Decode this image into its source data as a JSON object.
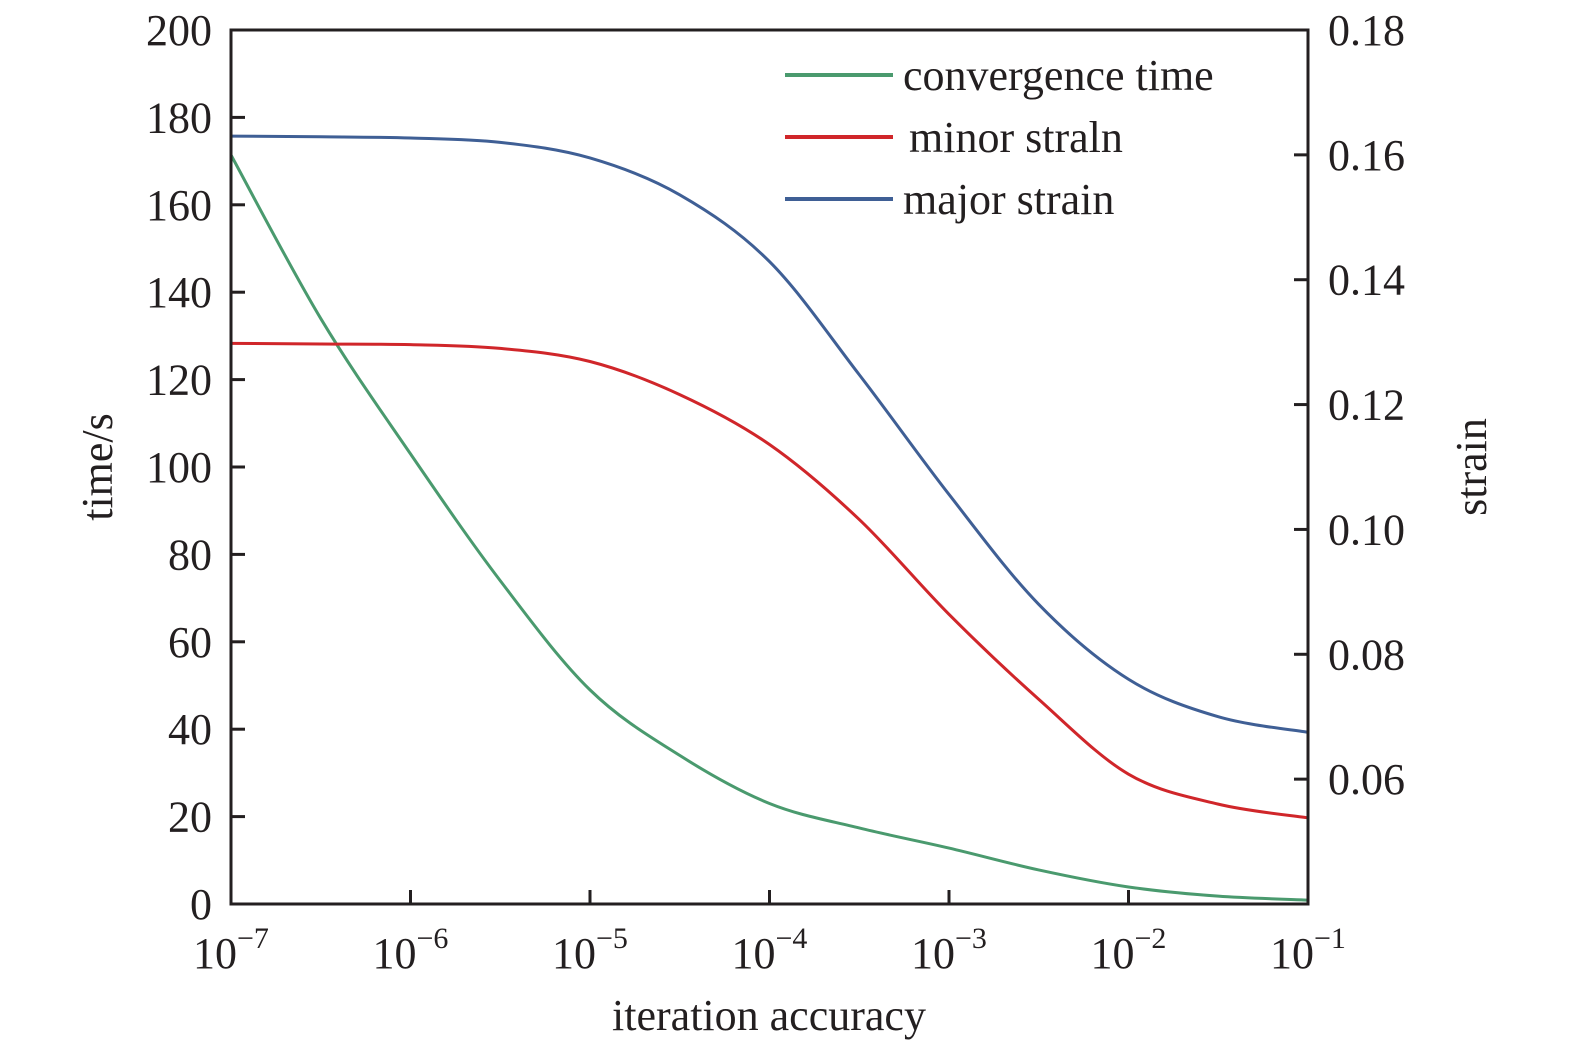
{
  "chart_data": {
    "type": "line",
    "xlabel": "iteration accuracy",
    "ylabel": "time/s",
    "y2label": "strain",
    "xscale": "log",
    "xlim": [
      1e-07,
      0.1
    ],
    "ylim": [
      0,
      200
    ],
    "y2lim": [
      0.04,
      0.18
    ],
    "grid": false,
    "legend_position": "top-right",
    "x_ticks": [
      {
        "base": "10",
        "exp": "−7"
      },
      {
        "base": "10",
        "exp": "−6"
      },
      {
        "base": "10",
        "exp": "−5"
      },
      {
        "base": "10",
        "exp": "−4"
      },
      {
        "base": "10",
        "exp": "−3"
      },
      {
        "base": "10",
        "exp": "−2"
      },
      {
        "base": "10",
        "exp": "−1"
      }
    ],
    "y_ticks": [
      "0",
      "20",
      "40",
      "60",
      "80",
      "100",
      "120",
      "140",
      "160",
      "180",
      "200"
    ],
    "y2_ticks": [
      "0.06",
      "0.08",
      "0.10",
      "0.12",
      "0.14",
      "0.16",
      "0.18"
    ],
    "x": [
      1e-07,
      3.16e-07,
      1e-06,
      3.16e-06,
      1e-05,
      3.16e-05,
      0.0001,
      0.000316,
      0.001,
      0.00316,
      0.01,
      0.0316,
      0.1
    ],
    "series": [
      {
        "name": "convergence time",
        "axis": "left",
        "color": "#4a9a6e",
        "values": [
          171.4,
          134,
          103,
          74,
          49,
          34,
          23,
          17.4,
          12.8,
          7.8,
          3.9,
          1.8,
          0.9
        ]
      },
      {
        "name": "minor straln",
        "axis": "right",
        "color": "#d0262a",
        "values": [
          0.1298,
          0.1297,
          0.1296,
          0.129,
          0.1269,
          0.1216,
          0.1136,
          0.1016,
          0.0864,
          0.0728,
          0.0608,
          0.056,
          0.0538
        ]
      },
      {
        "name": "major strain",
        "axis": "right",
        "color": "#3f5f95",
        "values": [
          0.163,
          0.1629,
          0.1627,
          0.162,
          0.1595,
          0.1536,
          0.1429,
          0.1248,
          0.1056,
          0.088,
          0.076,
          0.07,
          0.0675
        ]
      }
    ]
  }
}
